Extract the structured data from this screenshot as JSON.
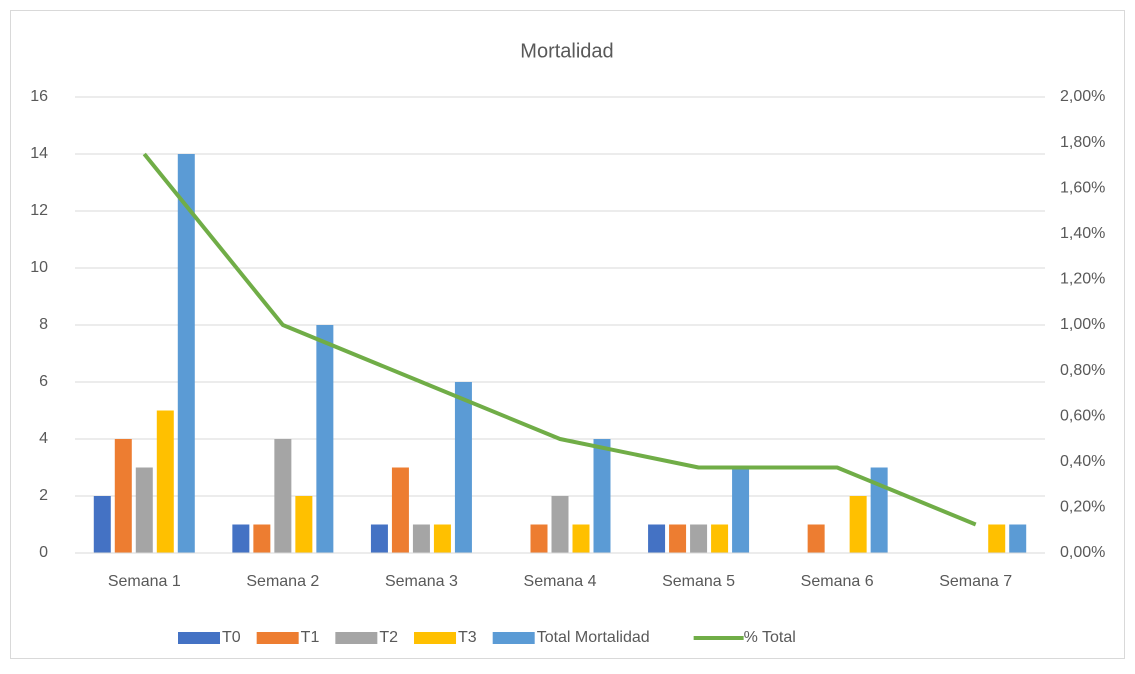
{
  "chart_data": {
    "type": "bar",
    "title": "Mortalidad",
    "categories": [
      "Semana 1",
      "Semana 2",
      "Semana 3",
      "Semana 4",
      "Semana 5",
      "Semana 6",
      "Semana 7"
    ],
    "series": [
      {
        "name": "T0",
        "color": "#4472c4",
        "values": [
          2,
          1,
          1,
          0,
          1,
          0,
          0
        ]
      },
      {
        "name": "T1",
        "color": "#ed7d31",
        "values": [
          4,
          1,
          3,
          1,
          1,
          1,
          0
        ]
      },
      {
        "name": "T2",
        "color": "#a5a5a5",
        "values": [
          3,
          4,
          1,
          2,
          1,
          0,
          0
        ]
      },
      {
        "name": "T3",
        "color": "#ffc000",
        "values": [
          5,
          2,
          1,
          1,
          1,
          2,
          1
        ]
      },
      {
        "name": "Total Mortalidad",
        "color": "#5b9bd5",
        "values": [
          14,
          8,
          6,
          4,
          3,
          3,
          1
        ]
      },
      {
        "name": "% Total",
        "color": "#70ad47",
        "type": "line",
        "axis": "y2",
        "values": [
          1.75,
          1.0,
          0.75,
          0.5,
          0.375,
          0.375,
          0.125
        ]
      }
    ],
    "ylim": [
      0,
      16
    ],
    "yticks": [
      0,
      2,
      4,
      6,
      8,
      10,
      12,
      14,
      16
    ],
    "y2lim": [
      0,
      2
    ],
    "y2ticks": [
      {
        "value": 0,
        "label": "0,00%"
      },
      {
        "value": 0.2,
        "label": "0,20%"
      },
      {
        "value": 0.4,
        "label": "0,40%"
      },
      {
        "value": 0.6,
        "label": "0,60%"
      },
      {
        "value": 0.8,
        "label": "0,80%"
      },
      {
        "value": 1.0,
        "label": "1,00%"
      },
      {
        "value": 1.2,
        "label": "1,20%"
      },
      {
        "value": 1.4,
        "label": "1,40%"
      },
      {
        "value": 1.6,
        "label": "1,60%"
      },
      {
        "value": 1.8,
        "label": "1,80%"
      },
      {
        "value": 2.0,
        "label": "2,00%"
      }
    ],
    "grid": true,
    "legend": "bottom"
  }
}
